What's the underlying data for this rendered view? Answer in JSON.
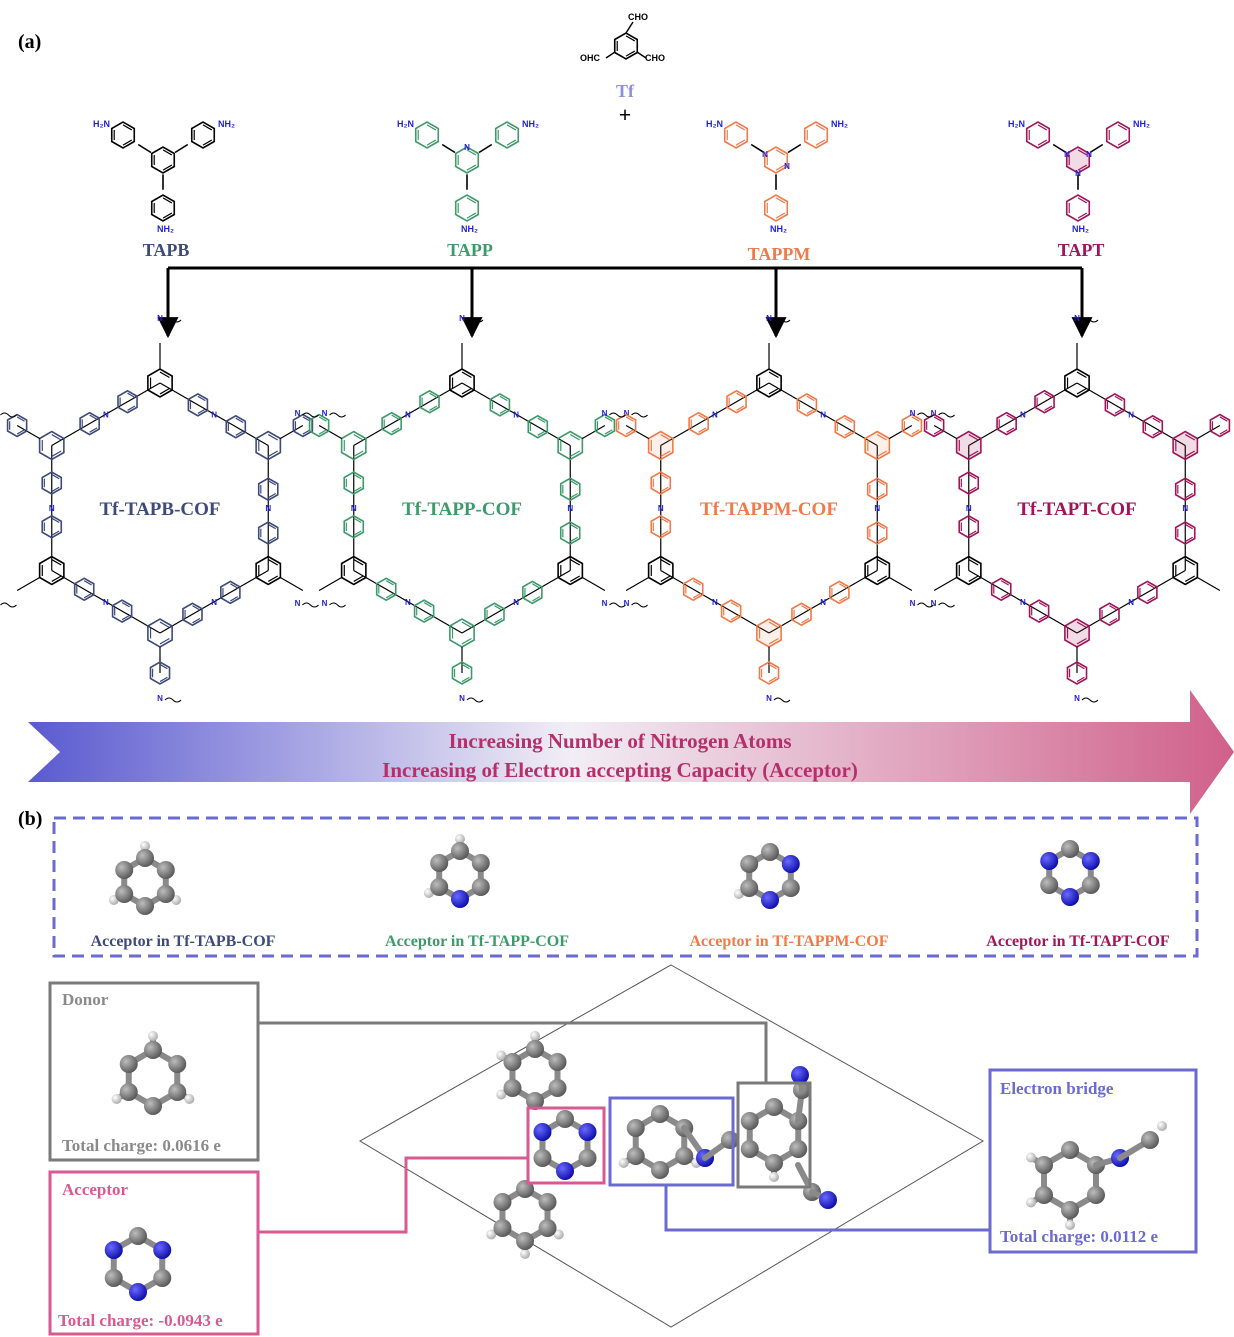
{
  "panel_labels": {
    "a": "(a)",
    "b": "(b)"
  },
  "colors": {
    "tapb": "#3d4a7a",
    "tapp": "#3d9a6a",
    "tappm": "#f07a4a",
    "tapt": "#a0155a",
    "tf": "#8f8fe0",
    "gradient_start": "#5a5ad0",
    "gradient_end": "#d0608a",
    "donor_box": "#7a7a7a",
    "acceptor_box": "#d85a92",
    "bridge_box": "#6a6ad0",
    "dashed_box": "#6a6ad0",
    "nitrogen": "#1f1fd6",
    "carbon": "#6e6e6e",
    "hydrogen": "#e6e6e6"
  },
  "linker": {
    "name": "Tf",
    "cho_top": "CHO",
    "cho_left": "OHC",
    "cho_right": "CHO",
    "plus": "+"
  },
  "monomers": [
    {
      "name": "TAPB",
      "nh2": "NH₂",
      "h2n": "H₂N"
    },
    {
      "name": "TAPP",
      "nh2": "NH₂",
      "h2n": "H₂N"
    },
    {
      "name": "TAPPM",
      "nh2": "NH₂",
      "h2n": "H₂N"
    },
    {
      "name": "TAPT",
      "nh2": "NH₂",
      "h2n": "H₂N"
    }
  ],
  "cofs": [
    "Tf-TAPB-COF",
    "Tf-TAPP-COF",
    "Tf-TAPPM-COF",
    "Tf-TAPT-COF"
  ],
  "imine_n": "N",
  "trend_arrow": {
    "line1": "Increasing Number of Nitrogen Atoms",
    "line2": "Increasing of Electron accepting Capacity (Acceptor)"
  },
  "acceptor_labels": [
    "Acceptor in Tf-TAPB-COF",
    "Acceptor in Tf-TAPP-COF",
    "Acceptor in Tf-TAPPM-COF",
    "Acceptor in Tf-TAPT-COF"
  ],
  "donor_box": {
    "title": "Donor",
    "charge": "Total charge: 0.0616 e"
  },
  "acceptor_box": {
    "title": "Acceptor",
    "charge": "Total charge: -0.0943 e"
  },
  "bridge_box": {
    "title": "Electron bridge",
    "charge": "Total charge: 0.0112 e"
  }
}
